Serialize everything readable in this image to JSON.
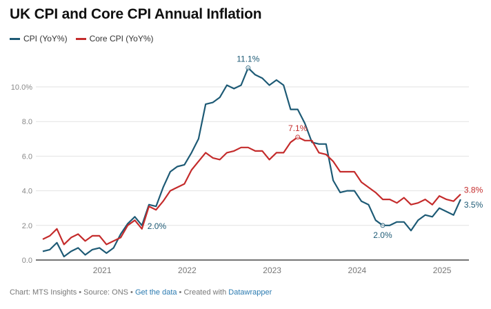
{
  "title": "UK CPI and Core CPI Annual Inflation",
  "footer": {
    "chart_credit": "Chart: MTS Insights",
    "source": "Source: ONS",
    "get_data": "Get the data",
    "created_with": "Created with",
    "datawrapper": "Datawrapper",
    "separator": " • "
  },
  "chart_data": {
    "type": "line",
    "title": "UK CPI and Core CPI Annual Inflation",
    "x_start": "2020-05",
    "x_end": "2025-04",
    "x_frequency": "monthly",
    "x_ticks": [
      "2021",
      "2022",
      "2023",
      "2024",
      "2025"
    ],
    "y_ticks": [
      "0.0",
      "2.0",
      "4.0",
      "6.0",
      "8.0",
      "10.0%"
    ],
    "ylim": [
      0,
      11.5
    ],
    "grid": true,
    "legend_position": "top-left",
    "series": [
      {
        "name": "CPI (YoY%)",
        "color": "#1d5a75",
        "values": [
          0.5,
          0.6,
          1.0,
          0.2,
          0.5,
          0.7,
          0.3,
          0.6,
          0.7,
          0.4,
          0.7,
          1.5,
          2.1,
          2.5,
          2.0,
          3.2,
          3.1,
          4.2,
          5.1,
          5.4,
          5.5,
          6.2,
          7.0,
          9.0,
          9.1,
          9.4,
          10.1,
          9.9,
          10.1,
          11.1,
          10.7,
          10.5,
          10.1,
          10.4,
          10.1,
          8.7,
          8.7,
          7.9,
          6.8,
          6.7,
          6.7,
          4.6,
          3.9,
          4.0,
          4.0,
          3.4,
          3.2,
          2.3,
          2.0,
          2.0,
          2.2,
          2.2,
          1.7,
          2.3,
          2.6,
          2.5,
          3.0,
          2.8,
          2.6,
          3.5
        ]
      },
      {
        "name": "Core CPI (YoY%)",
        "color": "#c42b2b",
        "values": [
          1.2,
          1.4,
          1.8,
          0.9,
          1.3,
          1.5,
          1.1,
          1.4,
          1.4,
          0.9,
          1.1,
          1.3,
          2.0,
          2.3,
          1.8,
          3.1,
          2.9,
          3.4,
          4.0,
          4.2,
          4.4,
          5.2,
          5.7,
          6.2,
          5.9,
          5.8,
          6.2,
          6.3,
          6.5,
          6.5,
          6.3,
          6.3,
          5.8,
          6.2,
          6.2,
          6.8,
          7.1,
          6.9,
          6.9,
          6.2,
          6.1,
          5.7,
          5.1,
          5.1,
          5.1,
          4.5,
          4.2,
          3.9,
          3.5,
          3.5,
          3.3,
          3.6,
          3.2,
          3.3,
          3.5,
          3.2,
          3.7,
          3.5,
          3.4,
          3.8
        ]
      }
    ],
    "annotations": [
      {
        "series": 0,
        "index": 14,
        "label": "2.0%",
        "marker": false
      },
      {
        "series": 0,
        "index": 29,
        "label": "11.1%",
        "marker": true
      },
      {
        "series": 0,
        "index": 48,
        "label": "2.0%",
        "marker": true
      },
      {
        "series": 0,
        "index": 59,
        "label": "3.5%",
        "marker": false
      },
      {
        "series": 1,
        "index": 36,
        "label": "7.1%",
        "marker": true
      },
      {
        "series": 1,
        "index": 59,
        "label": "3.8%",
        "marker": false
      }
    ]
  }
}
